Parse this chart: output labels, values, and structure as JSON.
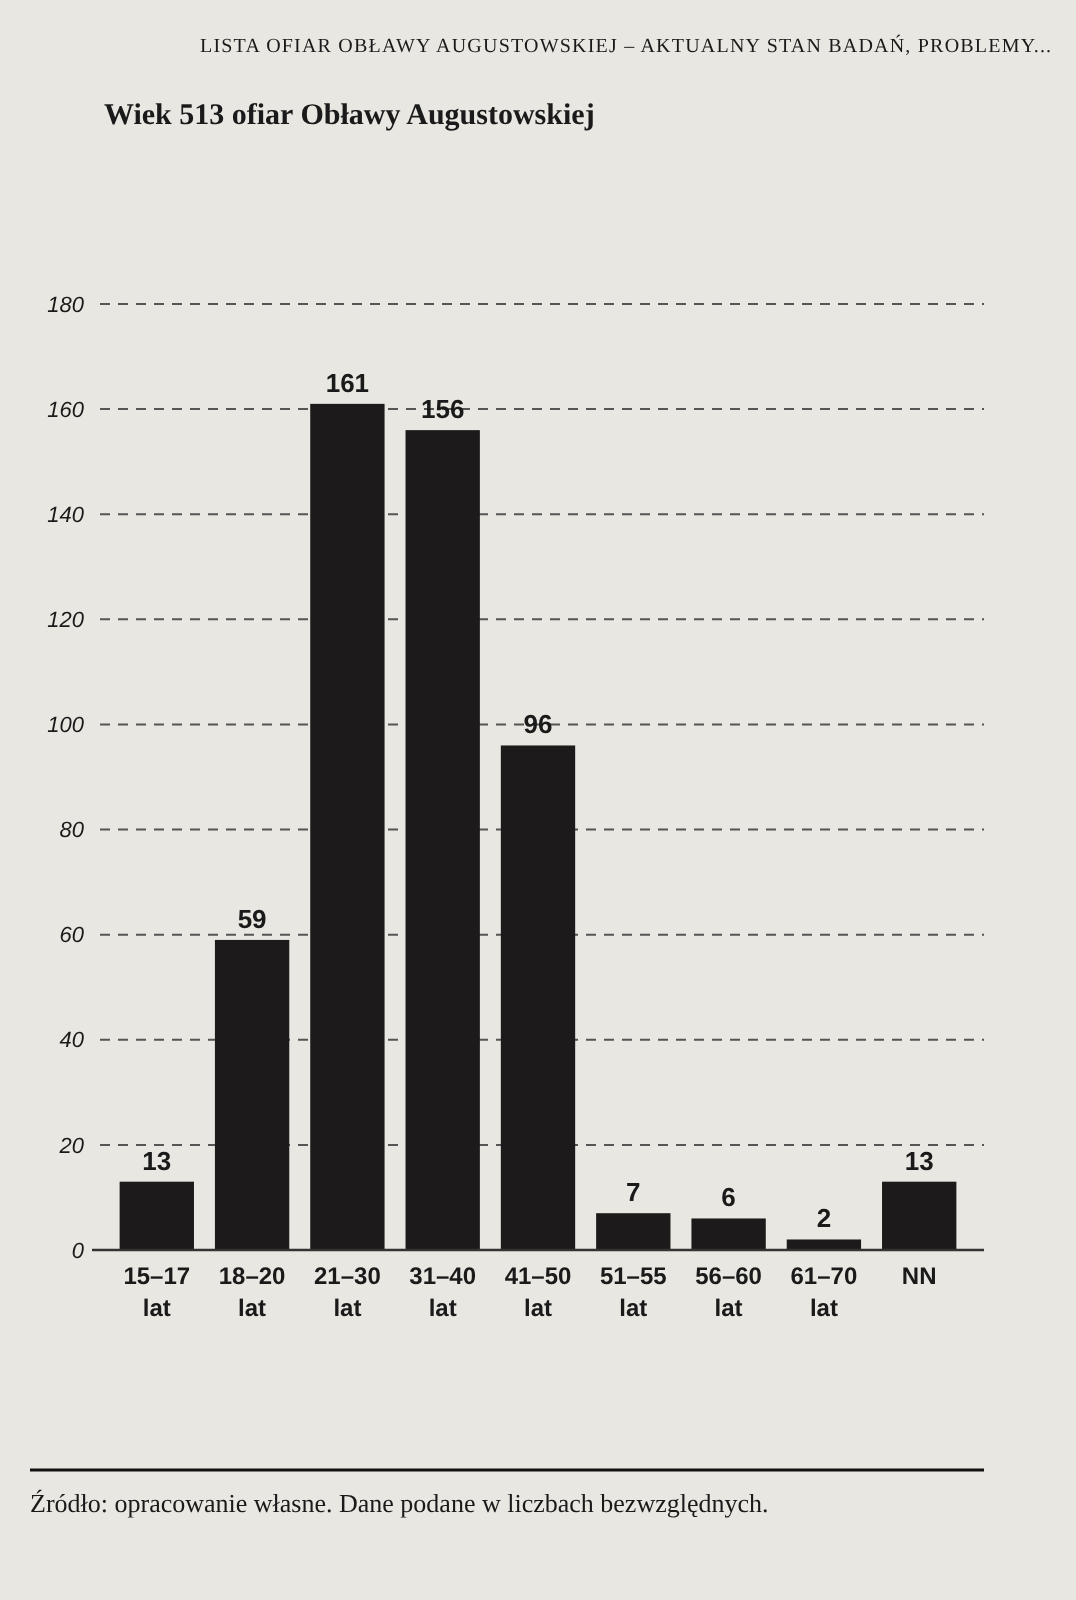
{
  "chart_data": {
    "type": "bar",
    "title": "Wiek 513 ofiar Obławy Augustowskiej",
    "categories": [
      "15–17 lat",
      "18–20 lat",
      "21–30 lat",
      "31–40 lat",
      "41–50 lat",
      "51–55 lat",
      "56–60 lat",
      "61–70 lat",
      "NN"
    ],
    "values": [
      13,
      59,
      161,
      156,
      96,
      7,
      6,
      2,
      13
    ],
    "color": "#1c1a1a",
    "ylim": [
      0,
      180
    ],
    "yticks": [
      0,
      20,
      40,
      60,
      80,
      100,
      120,
      140,
      160,
      180
    ],
    "grid": "y",
    "data_labels": true,
    "annotations": [
      "LISTA OFIAR OBŁAWY AUGUSTOWSKIEJ – AKTUALNY STAN BADAŃ, PROBLEMY...",
      "Źródło: opracowanie własne. Dane podane w liczbach bezwzględnych."
    ]
  }
}
